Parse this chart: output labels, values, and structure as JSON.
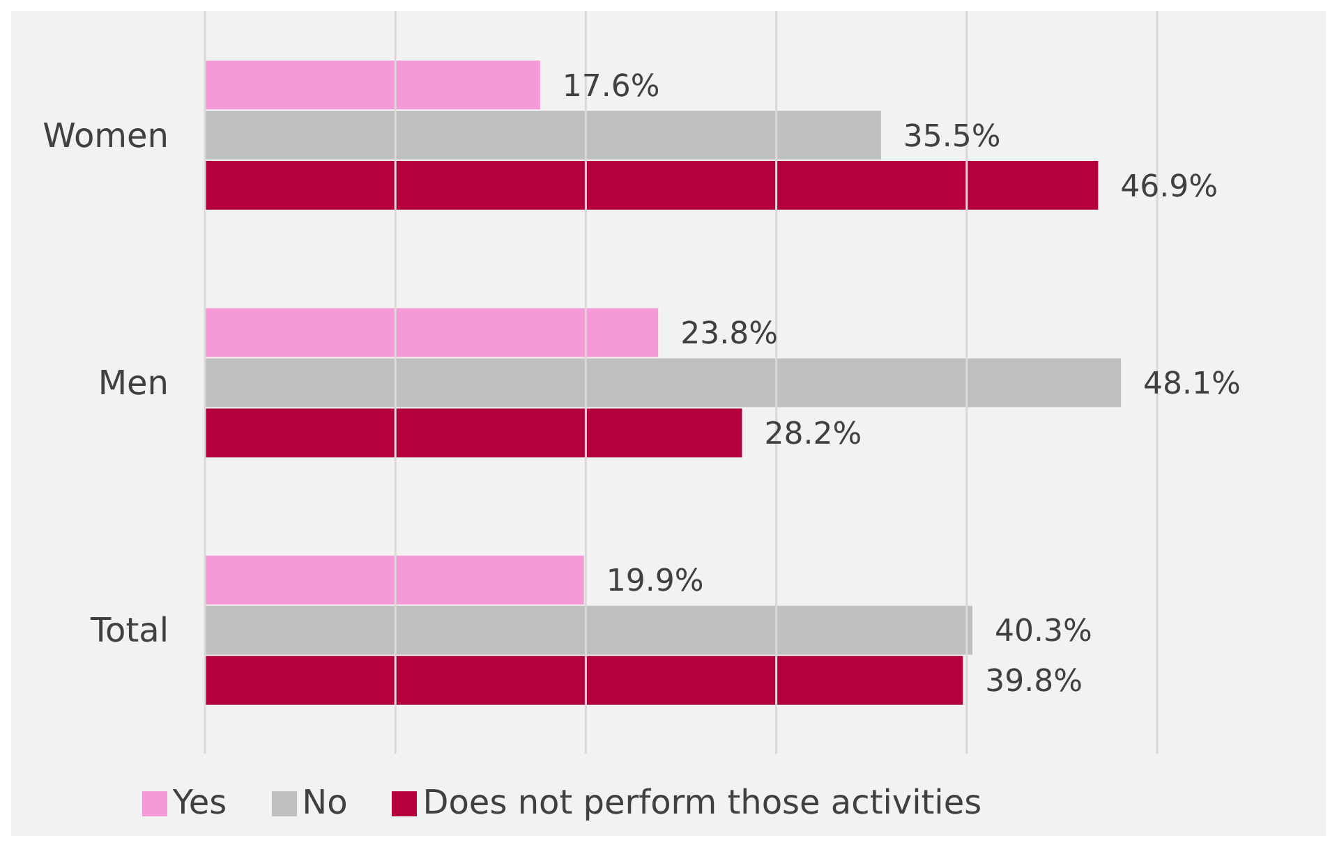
{
  "chart_data": {
    "type": "bar",
    "orientation": "horizontal",
    "categories": [
      "Women",
      "Men",
      "Total"
    ],
    "series": [
      {
        "name": "Yes",
        "color": "#f49ad6",
        "values": [
          17.6,
          23.8,
          19.9
        ],
        "value_labels": [
          "17.6%",
          "23.8%",
          "19.9%"
        ]
      },
      {
        "name": "No",
        "color": "#bfbfbf",
        "values": [
          35.5,
          48.1,
          40.3
        ],
        "value_labels": [
          "35.5%",
          "48.1%",
          "40.3%"
        ]
      },
      {
        "name": "Does not perform those activities",
        "color": "#b5003f",
        "values": [
          46.9,
          28.2,
          39.8
        ],
        "value_labels": [
          "46.9%",
          "28.2%",
          "39.8%"
        ]
      }
    ],
    "xlim": [
      0,
      50
    ],
    "xticks": [
      {
        "value": 0,
        "label": null
      },
      {
        "value": 10,
        "label": null
      },
      {
        "value": 20,
        "label": null
      },
      {
        "value": 30,
        "label": null
      },
      {
        "value": 40,
        "label": null
      },
      {
        "value": 50,
        "label": null
      }
    ],
    "grid": "x",
    "legend": "bottom",
    "tick_labels": "y"
  }
}
